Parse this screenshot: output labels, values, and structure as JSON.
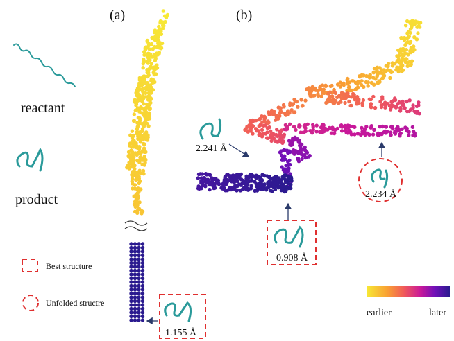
{
  "panel_a": {
    "label": "(a)",
    "best_rmsd": "1.155 Å"
  },
  "panel_b": {
    "label": "(b)",
    "annotations": [
      "2.241 Å",
      "0.908 Å",
      "2.234 Å"
    ]
  },
  "legend": {
    "reactant": "reactant",
    "product": "product",
    "best": "Best structure",
    "unfolded": "Unfolded structre"
  },
  "colorbar": {
    "start": "earlier",
    "end": "later"
  }
}
